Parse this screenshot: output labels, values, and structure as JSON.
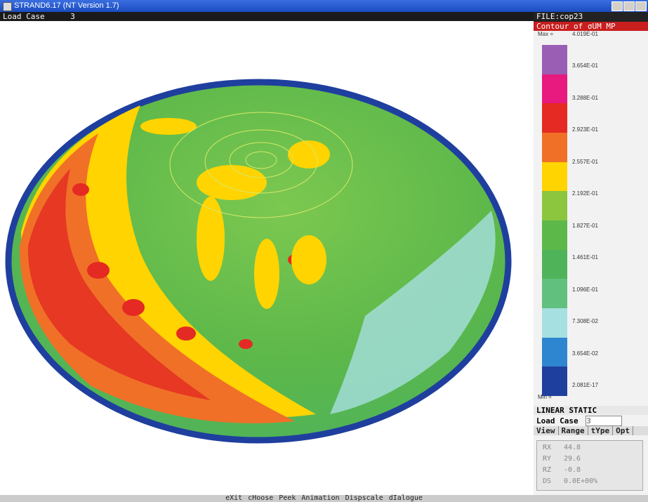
{
  "window": {
    "title": "STRAND6.17 (NT Version 1.7)"
  },
  "status": {
    "label": "Load Case",
    "value": "3"
  },
  "panel": {
    "file": "FILE:cop23",
    "contour": "Contour of σUM MP",
    "max_label": "Max =",
    "min_label": "Min =",
    "legend": {
      "labels": [
        "4.019E-01",
        "3.654E-01",
        "3.288E-01",
        "2.923E-01",
        "2.557E-01",
        "2.192E-01",
        "1.827E-01",
        "1.461E-01",
        "1.096E-01",
        "7.308E-02",
        "3.654E-02",
        "2.081E-17"
      ],
      "colors": [
        "#9a5fb4",
        "#e8197f",
        "#e42a22",
        "#f07028",
        "#ffd400",
        "#8cc63f",
        "#5db84a",
        "#4fb35a",
        "#62c07e",
        "#a6e0e0",
        "#2e86d0",
        "#1f3f9e"
      ]
    },
    "analysis": "LINEAR STATIC",
    "load_case_label": "Load Case",
    "load_case_value": "3",
    "tabs": [
      "View",
      "Range",
      "tYpe",
      "Opt"
    ],
    "rotation": [
      {
        "label": "RX",
        "value": "44.8"
      },
      {
        "label": "RY",
        "value": "29.6"
      },
      {
        "label": "RZ",
        "value": "-0.8"
      },
      {
        "label": "DS",
        "value": "0.0E+00%"
      }
    ]
  },
  "menu": [
    "eXit",
    "cHoose",
    "Peek",
    "Animation",
    "Dispscale",
    "dIalogue"
  ]
}
